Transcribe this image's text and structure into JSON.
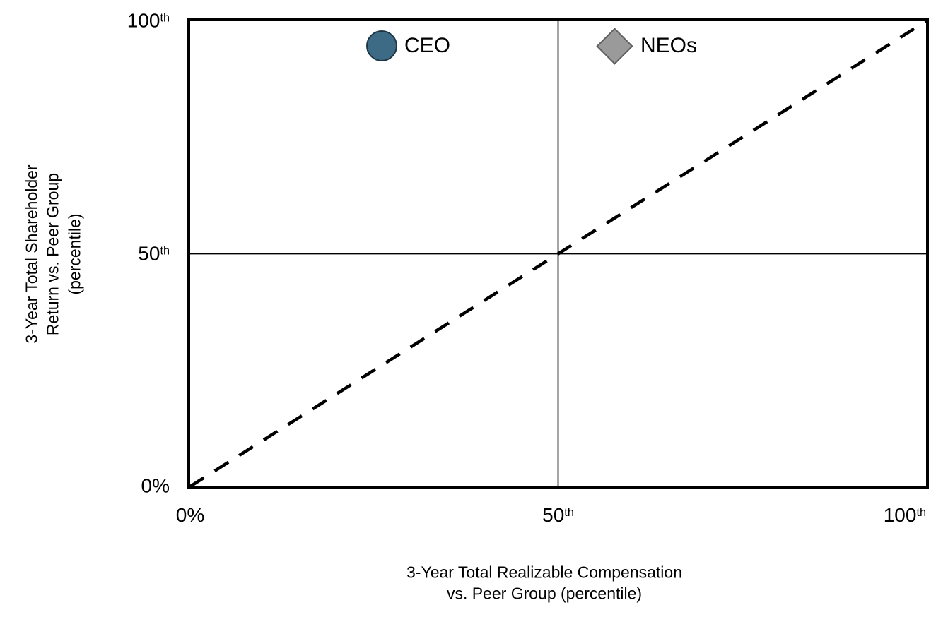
{
  "chart_data": {
    "type": "scatter",
    "title": "",
    "xlabel": "3-Year Total Realizable Compensation\nvs. Peer Group (percentile)",
    "ylabel": "3-Year Total Shareholder\nReturn vs. Peer Group\n(percentile)",
    "xlim": [
      0,
      100
    ],
    "ylim": [
      0,
      100
    ],
    "grid": false,
    "frame_color": "#000000",
    "x_ticks": [
      {
        "label": "0%",
        "sup": "",
        "value": 0
      },
      {
        "label": "50",
        "sup": "th",
        "value": 50
      },
      {
        "label": "100",
        "sup": "th",
        "value": 100
      }
    ],
    "y_ticks": [
      {
        "label": "0%",
        "sup": "",
        "value": 0
      },
      {
        "label": "50",
        "sup": "th",
        "value": 50
      },
      {
        "label": "100",
        "sup": "th",
        "value": 100
      }
    ],
    "reference_lines": [
      {
        "name": "median-x-line",
        "orientation": "vertical",
        "value": 50,
        "style": "solid",
        "color": "#000000",
        "width": 1.7
      },
      {
        "name": "median-y-line",
        "orientation": "horizontal",
        "value": 50,
        "style": "solid",
        "color": "#000000",
        "width": 1.7
      },
      {
        "name": "alignment-diagonal-line",
        "orientation": "diagonal",
        "from": [
          0,
          0
        ],
        "to": [
          100,
          100
        ],
        "style": "dashed",
        "color": "#000000",
        "width": 4.5,
        "dash": [
          23,
          18
        ]
      }
    ],
    "legend": {
      "position": "top-inside",
      "entries": [
        {
          "name": "CEO",
          "marker": "circle",
          "fill": "#3d6a85",
          "stroke": "#1d3744"
        },
        {
          "name": "NEOs",
          "marker": "diamond",
          "fill": "#9a9a9a",
          "stroke": "#606060"
        }
      ]
    },
    "series": [
      {
        "name": "CEO",
        "marker": "circle",
        "points": []
      },
      {
        "name": "NEOs",
        "marker": "diamond",
        "points": []
      }
    ]
  }
}
